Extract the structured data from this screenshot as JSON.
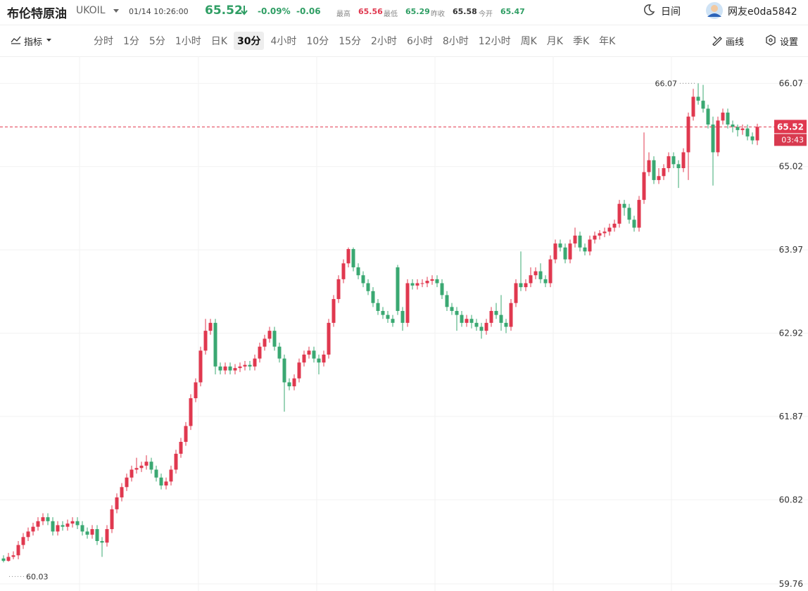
{
  "header": {
    "title": "布伦特原油",
    "symbol": "UKOIL",
    "time": "01/14 10:26:00",
    "price": "65.52",
    "change_pct": "-0.09%",
    "change": "-0.06",
    "stats": [
      {
        "label": "最高",
        "value": "65.56"
      },
      {
        "label": "最低",
        "value": "65.29"
      },
      {
        "label": "昨收",
        "value": "65.58"
      },
      {
        "label": "今开",
        "value": "65.47"
      }
    ],
    "mode": "日间",
    "user": "网友e0da5842"
  },
  "toolbar": {
    "indicator": "指标",
    "intervals": [
      "分时",
      "1分",
      "5分",
      "1小时",
      "日K",
      "30分",
      "4小时",
      "10分",
      "15分",
      "2小时",
      "6小时",
      "8小时",
      "12小时",
      "周K",
      "月K",
      "季K",
      "年K"
    ],
    "active_interval": "30分",
    "draw": "画线",
    "settings": "设置"
  },
  "chart_data": {
    "type": "candlestick",
    "up_color": "#e0384f",
    "down_color": "#3aa872",
    "grid": true,
    "ylim": [
      59.67,
      66.41
    ],
    "yticks": [
      66.07,
      65.02,
      63.97,
      62.92,
      61.87,
      60.82,
      59.76
    ],
    "high_marker": 66.07,
    "low_marker": 60.03,
    "last_price": 65.52,
    "countdown": "03:43",
    "ohlc": [
      [
        60.08,
        60.12,
        60.03,
        60.05
      ],
      [
        60.05,
        60.15,
        60.04,
        60.1
      ],
      [
        60.1,
        60.17,
        60.07,
        60.12
      ],
      [
        60.12,
        60.3,
        60.07,
        60.25
      ],
      [
        60.25,
        60.4,
        60.2,
        60.35
      ],
      [
        60.35,
        60.47,
        60.3,
        60.42
      ],
      [
        60.42,
        60.53,
        60.37,
        60.48
      ],
      [
        60.48,
        60.6,
        60.43,
        60.55
      ],
      [
        60.55,
        60.65,
        60.5,
        60.6
      ],
      [
        60.6,
        60.65,
        60.5,
        60.55
      ],
      [
        60.55,
        60.6,
        60.37,
        60.42
      ],
      [
        60.42,
        60.55,
        60.37,
        60.5
      ],
      [
        60.5,
        60.55,
        60.43,
        60.48
      ],
      [
        60.48,
        60.57,
        60.43,
        60.52
      ],
      [
        60.52,
        60.6,
        60.47,
        60.55
      ],
      [
        60.55,
        60.6,
        60.45,
        60.5
      ],
      [
        60.5,
        60.55,
        60.37,
        60.42
      ],
      [
        60.42,
        60.47,
        60.33,
        60.38
      ],
      [
        60.38,
        60.5,
        60.33,
        60.45
      ],
      [
        60.45,
        60.5,
        60.25,
        60.3
      ],
      [
        60.3,
        60.35,
        60.1,
        60.28
      ],
      [
        60.28,
        60.5,
        60.23,
        60.45
      ],
      [
        60.45,
        60.75,
        60.4,
        60.7
      ],
      [
        60.7,
        60.9,
        60.65,
        60.85
      ],
      [
        60.85,
        61.03,
        60.8,
        60.98
      ],
      [
        60.98,
        61.15,
        60.93,
        61.1
      ],
      [
        61.1,
        61.25,
        61.05,
        61.2
      ],
      [
        61.2,
        61.35,
        61.15,
        61.22
      ],
      [
        61.22,
        61.3,
        61.17,
        61.25
      ],
      [
        61.25,
        61.38,
        61.2,
        61.3
      ],
      [
        61.3,
        61.35,
        61.15,
        61.2
      ],
      [
        61.2,
        61.25,
        61.05,
        61.1
      ],
      [
        61.1,
        61.15,
        60.95,
        61.0
      ],
      [
        61.0,
        61.1,
        60.95,
        61.05
      ],
      [
        61.05,
        61.25,
        61.0,
        61.2
      ],
      [
        61.2,
        61.45,
        61.15,
        61.4
      ],
      [
        61.4,
        61.6,
        61.35,
        61.55
      ],
      [
        61.55,
        61.8,
        61.5,
        61.75
      ],
      [
        61.75,
        62.15,
        61.7,
        62.1
      ],
      [
        62.1,
        62.35,
        62.05,
        62.3
      ],
      [
        62.3,
        62.75,
        62.25,
        62.7
      ],
      [
        62.7,
        63.1,
        62.65,
        62.95
      ],
      [
        62.95,
        63.1,
        62.9,
        63.05
      ],
      [
        63.05,
        63.1,
        62.4,
        62.5
      ],
      [
        62.5,
        62.55,
        62.4,
        62.45
      ],
      [
        62.45,
        62.55,
        62.4,
        62.5
      ],
      [
        62.5,
        62.55,
        62.4,
        62.45
      ],
      [
        62.45,
        62.53,
        62.4,
        62.48
      ],
      [
        62.48,
        62.55,
        62.43,
        62.5
      ],
      [
        62.5,
        62.57,
        62.45,
        62.52
      ],
      [
        62.52,
        62.57,
        62.45,
        62.5
      ],
      [
        62.5,
        62.65,
        62.45,
        62.6
      ],
      [
        62.6,
        62.8,
        62.55,
        62.75
      ],
      [
        62.75,
        62.9,
        62.7,
        62.85
      ],
      [
        62.85,
        63.0,
        62.8,
        62.95
      ],
      [
        62.95,
        63.0,
        62.7,
        62.75
      ],
      [
        62.75,
        62.8,
        62.55,
        62.6
      ],
      [
        62.6,
        62.65,
        61.93,
        62.3
      ],
      [
        62.3,
        62.35,
        62.2,
        62.25
      ],
      [
        62.25,
        62.4,
        62.2,
        62.35
      ],
      [
        62.35,
        62.6,
        62.3,
        62.55
      ],
      [
        62.55,
        62.7,
        62.5,
        62.65
      ],
      [
        62.65,
        62.75,
        62.6,
        62.7
      ],
      [
        62.7,
        62.75,
        62.55,
        62.6
      ],
      [
        62.6,
        62.65,
        62.4,
        62.55
      ],
      [
        62.55,
        62.7,
        62.5,
        62.65
      ],
      [
        62.65,
        63.1,
        62.6,
        63.05
      ],
      [
        63.05,
        63.4,
        63.0,
        63.35
      ],
      [
        63.35,
        63.65,
        63.3,
        63.6
      ],
      [
        63.6,
        63.85,
        63.55,
        63.8
      ],
      [
        63.8,
        64.0,
        63.75,
        63.98
      ],
      [
        63.98,
        64.0,
        63.7,
        63.75
      ],
      [
        63.75,
        63.8,
        63.6,
        63.65
      ],
      [
        63.65,
        63.7,
        63.5,
        63.55
      ],
      [
        63.55,
        63.6,
        63.4,
        63.45
      ],
      [
        63.45,
        63.5,
        63.25,
        63.3
      ],
      [
        63.3,
        63.35,
        63.15,
        63.2
      ],
      [
        63.2,
        63.25,
        63.1,
        63.15
      ],
      [
        63.15,
        63.2,
        63.05,
        63.1
      ],
      [
        63.1,
        63.15,
        63.0,
        63.05
      ],
      [
        63.75,
        63.78,
        63.15,
        63.2
      ],
      [
        63.2,
        63.25,
        62.95,
        63.05
      ],
      [
        63.05,
        63.6,
        63.0,
        63.55
      ],
      [
        63.55,
        63.6,
        63.47,
        63.52
      ],
      [
        63.52,
        63.6,
        63.47,
        63.55
      ],
      [
        63.55,
        63.6,
        63.5,
        63.55
      ],
      [
        63.55,
        63.63,
        63.5,
        63.58
      ],
      [
        63.58,
        63.65,
        63.53,
        63.6
      ],
      [
        63.6,
        63.65,
        63.5,
        63.55
      ],
      [
        63.55,
        63.6,
        63.35,
        63.4
      ],
      [
        63.4,
        63.45,
        63.2,
        63.25
      ],
      [
        63.25,
        63.3,
        63.15,
        63.2
      ],
      [
        63.2,
        63.25,
        62.95,
        63.15
      ],
      [
        63.15,
        63.2,
        63.0,
        63.05
      ],
      [
        63.05,
        63.15,
        63.0,
        63.1
      ],
      [
        63.1,
        63.15,
        62.98,
        63.05
      ],
      [
        63.05,
        63.1,
        62.95,
        63.0
      ],
      [
        63.0,
        63.05,
        62.85,
        62.95
      ],
      [
        62.95,
        63.1,
        62.9,
        63.05
      ],
      [
        63.05,
        63.25,
        63.0,
        63.2
      ],
      [
        63.2,
        63.3,
        63.1,
        63.15
      ],
      [
        63.15,
        63.4,
        62.95,
        63.05
      ],
      [
        63.05,
        63.1,
        62.92,
        63.0
      ],
      [
        63.0,
        63.35,
        62.95,
        63.3
      ],
      [
        63.3,
        63.6,
        63.25,
        63.55
      ],
      [
        63.55,
        63.95,
        63.45,
        63.5
      ],
      [
        63.5,
        63.6,
        63.45,
        63.55
      ],
      [
        63.55,
        63.75,
        63.5,
        63.65
      ],
      [
        63.65,
        63.75,
        63.6,
        63.7
      ],
      [
        63.7,
        63.8,
        63.55,
        63.6
      ],
      [
        63.6,
        63.65,
        63.5,
        63.55
      ],
      [
        63.55,
        63.9,
        63.5,
        63.85
      ],
      [
        63.85,
        64.1,
        63.8,
        64.05
      ],
      [
        64.05,
        64.1,
        63.95,
        64.0
      ],
      [
        64.0,
        64.05,
        63.8,
        63.85
      ],
      [
        63.85,
        64.1,
        63.8,
        64.05
      ],
      [
        64.05,
        64.25,
        64.0,
        64.15
      ],
      [
        64.15,
        64.2,
        63.95,
        64.0
      ],
      [
        64.0,
        64.05,
        63.9,
        63.95
      ],
      [
        63.95,
        64.15,
        63.9,
        64.1
      ],
      [
        64.1,
        64.2,
        64.05,
        64.15
      ],
      [
        64.15,
        64.22,
        64.1,
        64.18
      ],
      [
        64.18,
        64.25,
        64.13,
        64.2
      ],
      [
        64.2,
        64.3,
        64.15,
        64.25
      ],
      [
        64.25,
        64.35,
        64.2,
        64.3
      ],
      [
        64.3,
        64.6,
        64.25,
        64.55
      ],
      [
        64.55,
        64.6,
        64.4,
        64.5
      ],
      [
        64.5,
        64.55,
        64.3,
        64.35
      ],
      [
        64.35,
        64.4,
        64.2,
        64.25
      ],
      [
        64.25,
        64.65,
        64.2,
        64.6
      ],
      [
        64.6,
        65.45,
        64.55,
        64.95
      ],
      [
        64.95,
        65.2,
        64.9,
        65.1
      ],
      [
        65.1,
        65.15,
        64.8,
        64.85
      ],
      [
        64.85,
        65.0,
        64.8,
        64.9
      ],
      [
        64.9,
        65.05,
        64.85,
        65.0
      ],
      [
        65.0,
        65.2,
        64.95,
        65.15
      ],
      [
        65.15,
        65.2,
        65.0,
        65.05
      ],
      [
        65.05,
        65.1,
        64.75,
        65.0
      ],
      [
        65.0,
        65.25,
        64.95,
        65.2
      ],
      [
        65.2,
        65.7,
        64.85,
        65.65
      ],
      [
        65.65,
        66.0,
        65.6,
        65.9
      ],
      [
        65.9,
        66.07,
        65.8,
        65.85
      ],
      [
        65.85,
        66.05,
        65.7,
        65.75
      ],
      [
        65.75,
        65.8,
        65.5,
        65.55
      ],
      [
        65.55,
        65.65,
        64.78,
        65.2
      ],
      [
        65.2,
        65.65,
        65.15,
        65.6
      ],
      [
        65.6,
        65.75,
        65.55,
        65.7
      ],
      [
        65.7,
        65.75,
        65.5,
        65.55
      ],
      [
        65.55,
        65.6,
        65.45,
        65.52
      ],
      [
        65.52,
        65.55,
        65.4,
        65.48
      ],
      [
        65.48,
        65.55,
        65.42,
        65.5
      ],
      [
        65.5,
        65.55,
        65.35,
        65.4
      ],
      [
        65.4,
        65.45,
        65.3,
        65.35
      ],
      [
        65.35,
        65.56,
        65.29,
        65.52
      ]
    ]
  }
}
